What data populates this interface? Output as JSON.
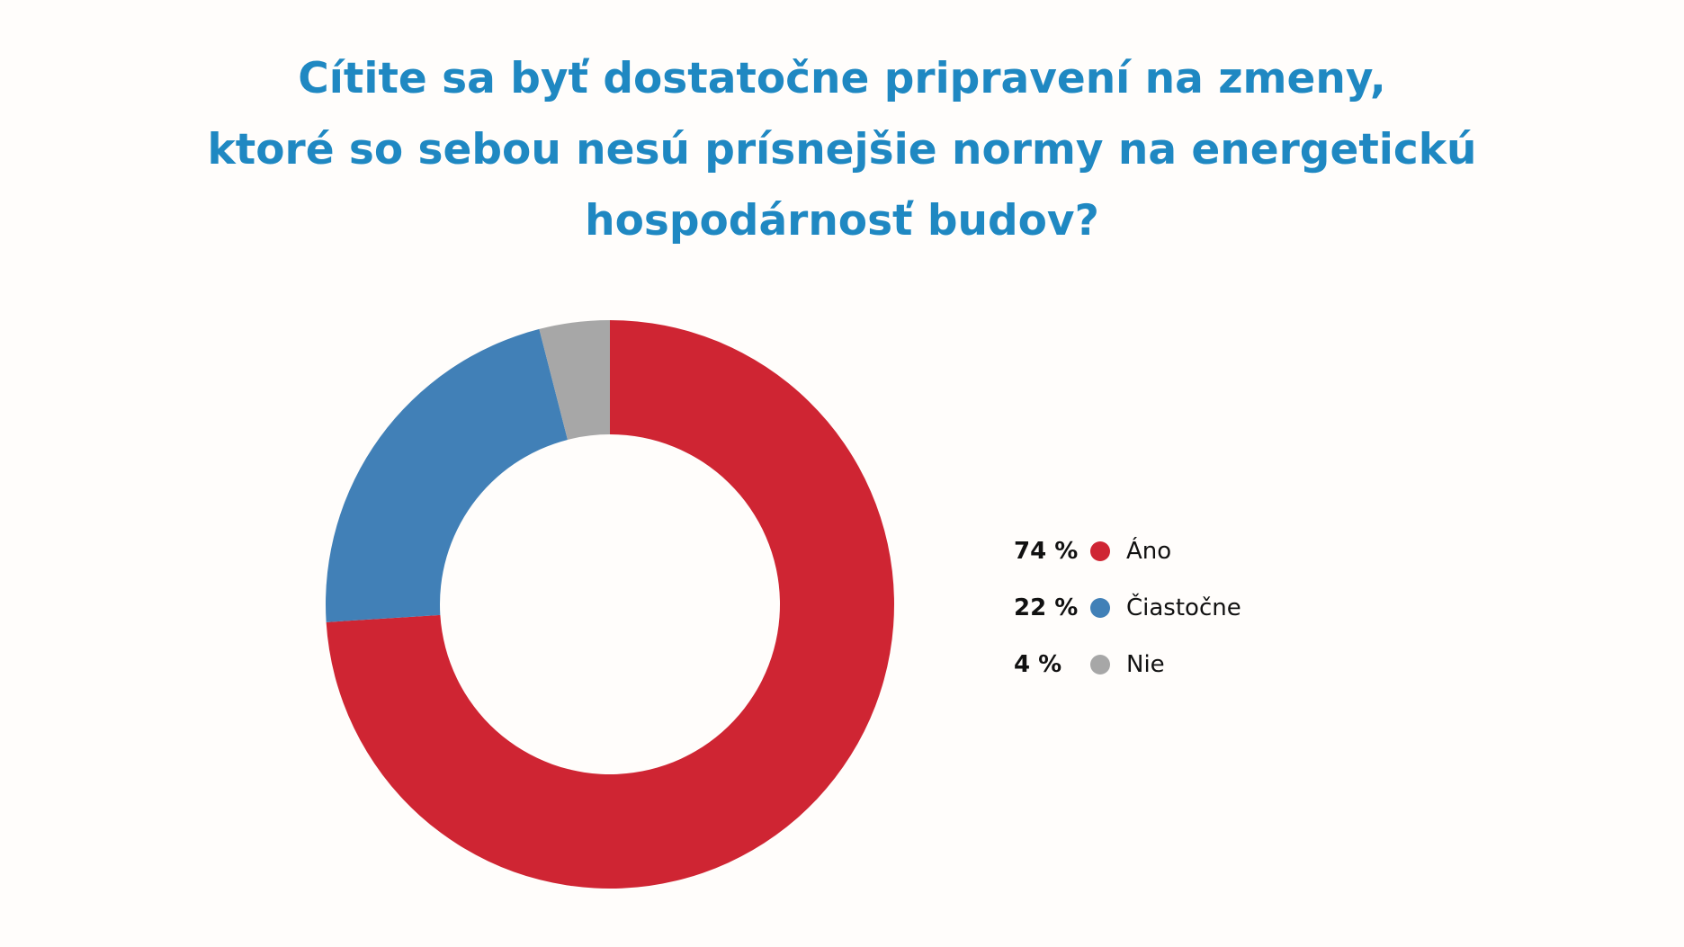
{
  "title": {
    "line1": "Cítite sa byť dostatočne pripravení na zmeny,",
    "line2": "ktoré so sebou nesú prísnejšie normy na energetickú",
    "line3": "hospodárnosť budov?"
  },
  "colors": {
    "title": "#1f88c2",
    "ano": "#cf2533",
    "ciastocne": "#4180b7",
    "nie": "#a7a7a7"
  },
  "chart_data": {
    "type": "pie",
    "variant": "donut",
    "title": "Cítite sa byť dostatočne pripravení na zmeny, ktoré so sebou nesú prísnejšie normy na energetickú hospodárnosť budov?",
    "categories": [
      "Áno",
      "Čiastočne",
      "Nie"
    ],
    "values": [
      74,
      22,
      4
    ],
    "value_labels": [
      "74 %",
      "22 %",
      "4 %"
    ],
    "colors": [
      "#cf2533",
      "#4180b7",
      "#a7a7a7"
    ],
    "legend": "right"
  }
}
